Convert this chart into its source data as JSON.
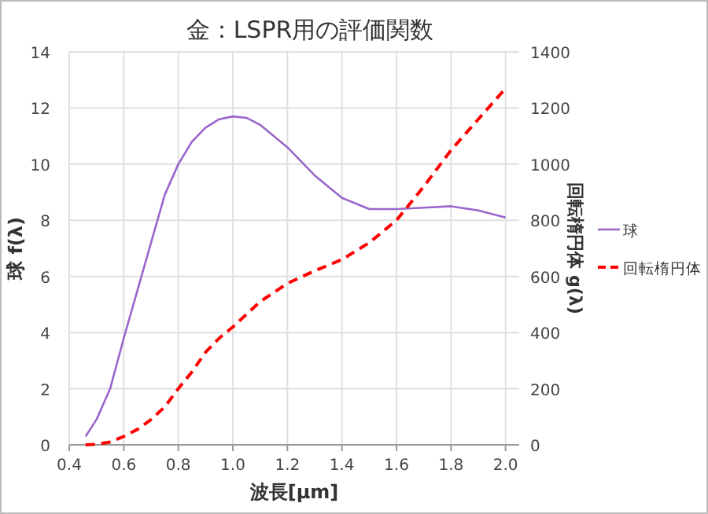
{
  "chart_data": {
    "type": "line",
    "title": "金：LSPR用の評価関数",
    "xlabel": "波長[μm]",
    "ylabel": "球 f(λ)",
    "y2label": "回転楕円体 g(λ)",
    "xlim": [
      0.4,
      2.05
    ],
    "xticks": [
      {
        "value": 0.4,
        "label": "0.4"
      },
      {
        "value": 0.6,
        "label": "0.6"
      },
      {
        "value": 0.8,
        "label": "0.8"
      },
      {
        "value": 1.0,
        "label": "1.0"
      },
      {
        "value": 1.2,
        "label": "1.2"
      },
      {
        "value": 1.4,
        "label": "1.4"
      },
      {
        "value": 1.6,
        "label": "1.6"
      },
      {
        "value": 1.8,
        "label": "1.8"
      },
      {
        "value": 2.0,
        "label": "2.0"
      }
    ],
    "ylim": [
      0,
      14
    ],
    "yticks": [
      0,
      2,
      4,
      6,
      8,
      10,
      12,
      14
    ],
    "y2lim": [
      0,
      1400
    ],
    "y2ticks": [
      0,
      200,
      400,
      600,
      800,
      1000,
      1200,
      1400
    ],
    "grid": true,
    "legend": "right",
    "marker": "none",
    "series": [
      {
        "name": "球",
        "color": "#9966cc",
        "line_style": "solid",
        "x": [
          0.46,
          0.5,
          0.55,
          0.6,
          0.65,
          0.7,
          0.75,
          0.8,
          0.85,
          0.9,
          0.95,
          1.0,
          1.05,
          1.1,
          1.2,
          1.3,
          1.4,
          1.5,
          1.6,
          1.7,
          1.8,
          1.9,
          2.0
        ],
        "values": [
          0.3,
          0.9,
          2.0,
          3.8,
          5.5,
          7.2,
          8.9,
          10.0,
          10.8,
          11.3,
          11.6,
          11.7,
          11.65,
          11.4,
          10.6,
          9.6,
          8.8,
          8.4,
          8.4,
          8.45,
          8.5,
          8.35,
          8.1
        ]
      },
      {
        "name": "回転楕円体",
        "color": "#ff0000",
        "line_style": "dashed",
        "axis": "y2",
        "x": [
          0.46,
          0.5,
          0.55,
          0.6,
          0.65,
          0.7,
          0.75,
          0.8,
          0.85,
          0.9,
          0.95,
          1.0,
          1.1,
          1.2,
          1.3,
          1.4,
          1.5,
          1.6,
          1.7,
          1.8,
          1.9,
          2.0
        ],
        "values": [
          0,
          2,
          10,
          30,
          55,
          90,
          135,
          200,
          260,
          330,
          380,
          420,
          510,
          575,
          620,
          660,
          720,
          800,
          920,
          1050,
          1160,
          1270
        ]
      }
    ]
  }
}
